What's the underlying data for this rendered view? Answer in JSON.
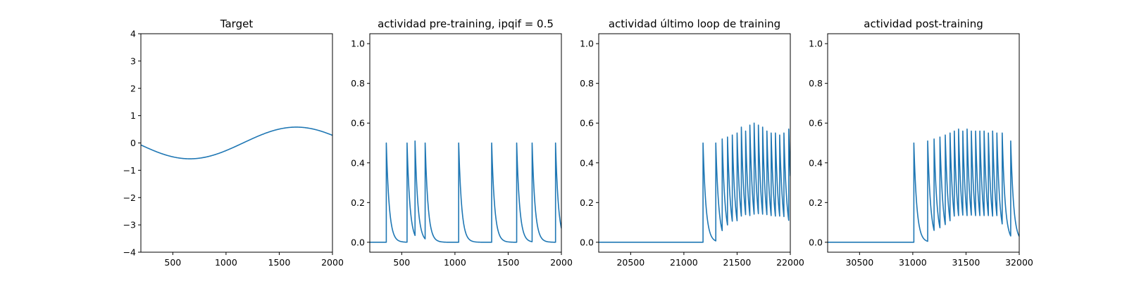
{
  "figure": {
    "background": "#ffffff",
    "line_color": "#1f77b4"
  },
  "chart_data": [
    {
      "type": "line",
      "title": "Target",
      "xlabel": "",
      "ylabel": "",
      "xlim": [
        200,
        2000
      ],
      "ylim": [
        -4,
        4
      ],
      "xticks": [
        500,
        1000,
        1500,
        2000
      ],
      "yticks": [
        -4,
        -3,
        -2,
        -1,
        0,
        1,
        2,
        3,
        4
      ],
      "xtick_labels": [
        "500",
        "1000",
        "1500",
        "2000"
      ],
      "ytick_labels": [
        "−4",
        "−3",
        "−2",
        "−1",
        "0",
        "1",
        "2",
        "3",
        "4"
      ],
      "grid": false,
      "series": [
        {
          "kind": "sine",
          "amplitude": 0.58,
          "period": 2000,
          "minimum_at": 660,
          "x_start": 200,
          "x_end": 2000
        }
      ]
    },
    {
      "type": "line",
      "title": "actividad pre-training, ipqif = 0.5",
      "xlabel": "",
      "ylabel": "",
      "xlim": [
        200,
        2000
      ],
      "ylim": [
        -0.05,
        1.05
      ],
      "xticks": [
        500,
        1000,
        1500,
        2000
      ],
      "yticks": [
        0.0,
        0.2,
        0.4,
        0.6,
        0.8,
        1.0
      ],
      "xtick_labels": [
        "500",
        "1000",
        "1500",
        "2000"
      ],
      "ytick_labels": [
        "0.0",
        "0.2",
        "0.4",
        "0.6",
        "0.8",
        "1.0"
      ],
      "grid": false,
      "series": [
        {
          "kind": "spikes",
          "baseline": 0,
          "decay": 28,
          "x_start": 200,
          "x_end": 2000,
          "spike_times": [
            355,
            550,
            625,
            720,
            1035,
            1345,
            1580,
            1725,
            1945
          ],
          "spike_peaks": [
            0.5,
            0.5,
            0.51,
            0.5,
            0.5,
            0.5,
            0.5,
            0.5,
            0.5
          ]
        }
      ]
    },
    {
      "type": "line",
      "title": "actividad último loop de training",
      "xlabel": "",
      "ylabel": "",
      "xlim": [
        20200,
        22000
      ],
      "ylim": [
        -0.05,
        1.05
      ],
      "xticks": [
        20500,
        21000,
        21500,
        22000
      ],
      "yticks": [
        0.0,
        0.2,
        0.4,
        0.6,
        0.8,
        1.0
      ],
      "xtick_labels": [
        "20500",
        "21000",
        "21500",
        "22000"
      ],
      "ytick_labels": [
        "0.0",
        "0.2",
        "0.4",
        "0.6",
        "0.8",
        "1.0"
      ],
      "grid": false,
      "series": [
        {
          "kind": "spikes",
          "baseline": 0,
          "decay": 28,
          "x_start": 20200,
          "x_end": 22000,
          "spike_times": [
            21180,
            21300,
            21360,
            21410,
            21455,
            21500,
            21540,
            21580,
            21620,
            21660,
            21700,
            21740,
            21780,
            21820,
            21860,
            21900,
            21940,
            21985
          ],
          "spike_peaks": [
            0.5,
            0.5,
            0.52,
            0.53,
            0.54,
            0.55,
            0.58,
            0.56,
            0.59,
            0.6,
            0.59,
            0.58,
            0.56,
            0.55,
            0.55,
            0.54,
            0.55,
            0.57
          ]
        }
      ]
    },
    {
      "type": "line",
      "title": "actividad post-training",
      "xlabel": "",
      "ylabel": "",
      "xlim": [
        30200,
        32000
      ],
      "ylim": [
        -0.05,
        1.05
      ],
      "xticks": [
        30500,
        31000,
        31500,
        32000
      ],
      "yticks": [
        0.0,
        0.2,
        0.4,
        0.6,
        0.8,
        1.0
      ],
      "xtick_labels": [
        "30500",
        "31000",
        "31500",
        "32000"
      ],
      "ytick_labels": [
        "0.0",
        "0.2",
        "0.4",
        "0.6",
        "0.8",
        "1.0"
      ],
      "grid": false,
      "series": [
        {
          "kind": "spikes",
          "baseline": 0,
          "decay": 28,
          "x_start": 30200,
          "x_end": 32000,
          "spike_times": [
            31010,
            31140,
            31200,
            31255,
            31305,
            31350,
            31390,
            31430,
            31470,
            31510,
            31550,
            31590,
            31630,
            31670,
            31710,
            31750,
            31790,
            31840,
            31920
          ],
          "spike_peaks": [
            0.5,
            0.51,
            0.52,
            0.53,
            0.54,
            0.55,
            0.56,
            0.57,
            0.56,
            0.57,
            0.56,
            0.56,
            0.56,
            0.56,
            0.55,
            0.56,
            0.55,
            0.55,
            0.51
          ]
        }
      ]
    }
  ]
}
